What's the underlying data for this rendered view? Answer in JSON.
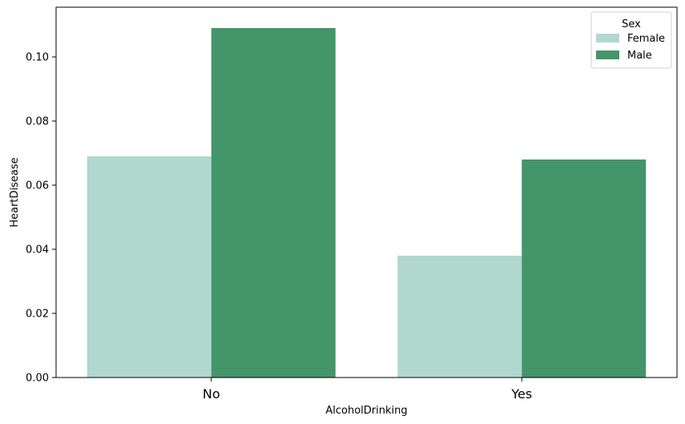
{
  "chart_data": {
    "type": "bar",
    "categories": [
      "No",
      "Yes"
    ],
    "series": [
      {
        "name": "Female",
        "values": [
          0.069,
          0.038
        ],
        "color": "#b0d8cf"
      },
      {
        "name": "Male",
        "values": [
          0.109,
          0.068
        ],
        "color": "#44956a"
      }
    ],
    "xlabel": "AlcoholDrinking",
    "ylabel": "HeartDisease",
    "ylim": [
      0,
      0.1155
    ],
    "yticks": [
      "0.00",
      "0.02",
      "0.04",
      "0.06",
      "0.08",
      "0.10"
    ],
    "grid": false,
    "legend": {
      "title": "Sex",
      "placement": "top-right"
    }
  }
}
